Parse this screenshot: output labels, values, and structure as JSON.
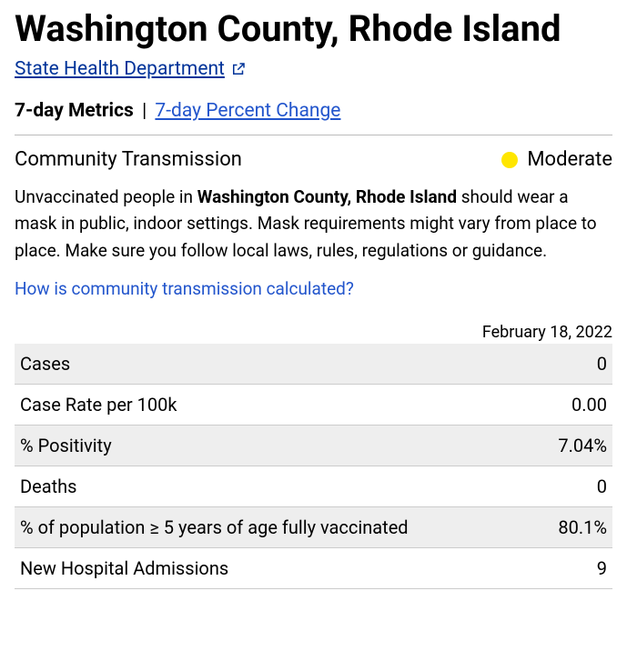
{
  "header": {
    "title": "Washington County, Rhode Island",
    "state_link_label": "State Health Department"
  },
  "tabs": {
    "active": "7-day Metrics",
    "inactive": "7-day Percent Change"
  },
  "transmission": {
    "label": "Community Transmission",
    "level": "Moderate",
    "dot_color": "#ffe600"
  },
  "guidance": {
    "prefix": "Unvaccinated people in ",
    "location": "Washington County, Rhode Island",
    "suffix": " should wear a mask in public, indoor settings. Mask requirements might vary from place to place. Make sure you follow local laws, rules, regulations or guidance."
  },
  "calc_link": "How is community transmission calculated?",
  "date": "February 18, 2022",
  "metrics": [
    {
      "label": "Cases",
      "value": "0"
    },
    {
      "label": "Case Rate per 100k",
      "value": "0.00"
    },
    {
      "label": "% Positivity",
      "value": "7.04%"
    },
    {
      "label": "Deaths",
      "value": "0"
    },
    {
      "label": "% of population ≥ 5 years of age fully vaccinated",
      "value": "80.1%"
    },
    {
      "label": "New Hospital Admissions",
      "value": "9"
    }
  ],
  "colors": {
    "link": "#2255cc",
    "deep_link": "#003399",
    "stripe": "#eeeeee",
    "border": "#cccccc"
  }
}
